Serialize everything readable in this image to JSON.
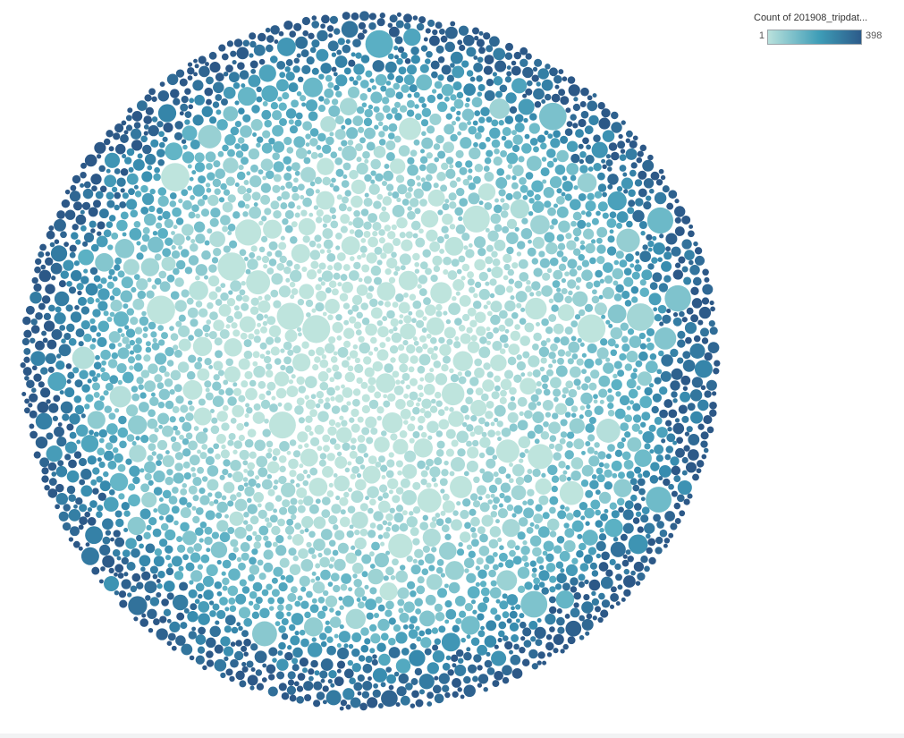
{
  "chart_data": {
    "type": "packed bubble",
    "legend": {
      "title": "Count of 201908_tripdat...",
      "min_label": "1",
      "max_label": "398",
      "placement": "top-right",
      "color_low": "#b9e1dc",
      "color_mid": "#3e9db7",
      "color_high": "#2c5b8a"
    },
    "color_measure_range": [
      1,
      398
    ],
    "note_values": "Thousands of bubbles; individual values are unlabeled. Larger bubbles are light (low count), outer ring is dark (high count)."
  }
}
